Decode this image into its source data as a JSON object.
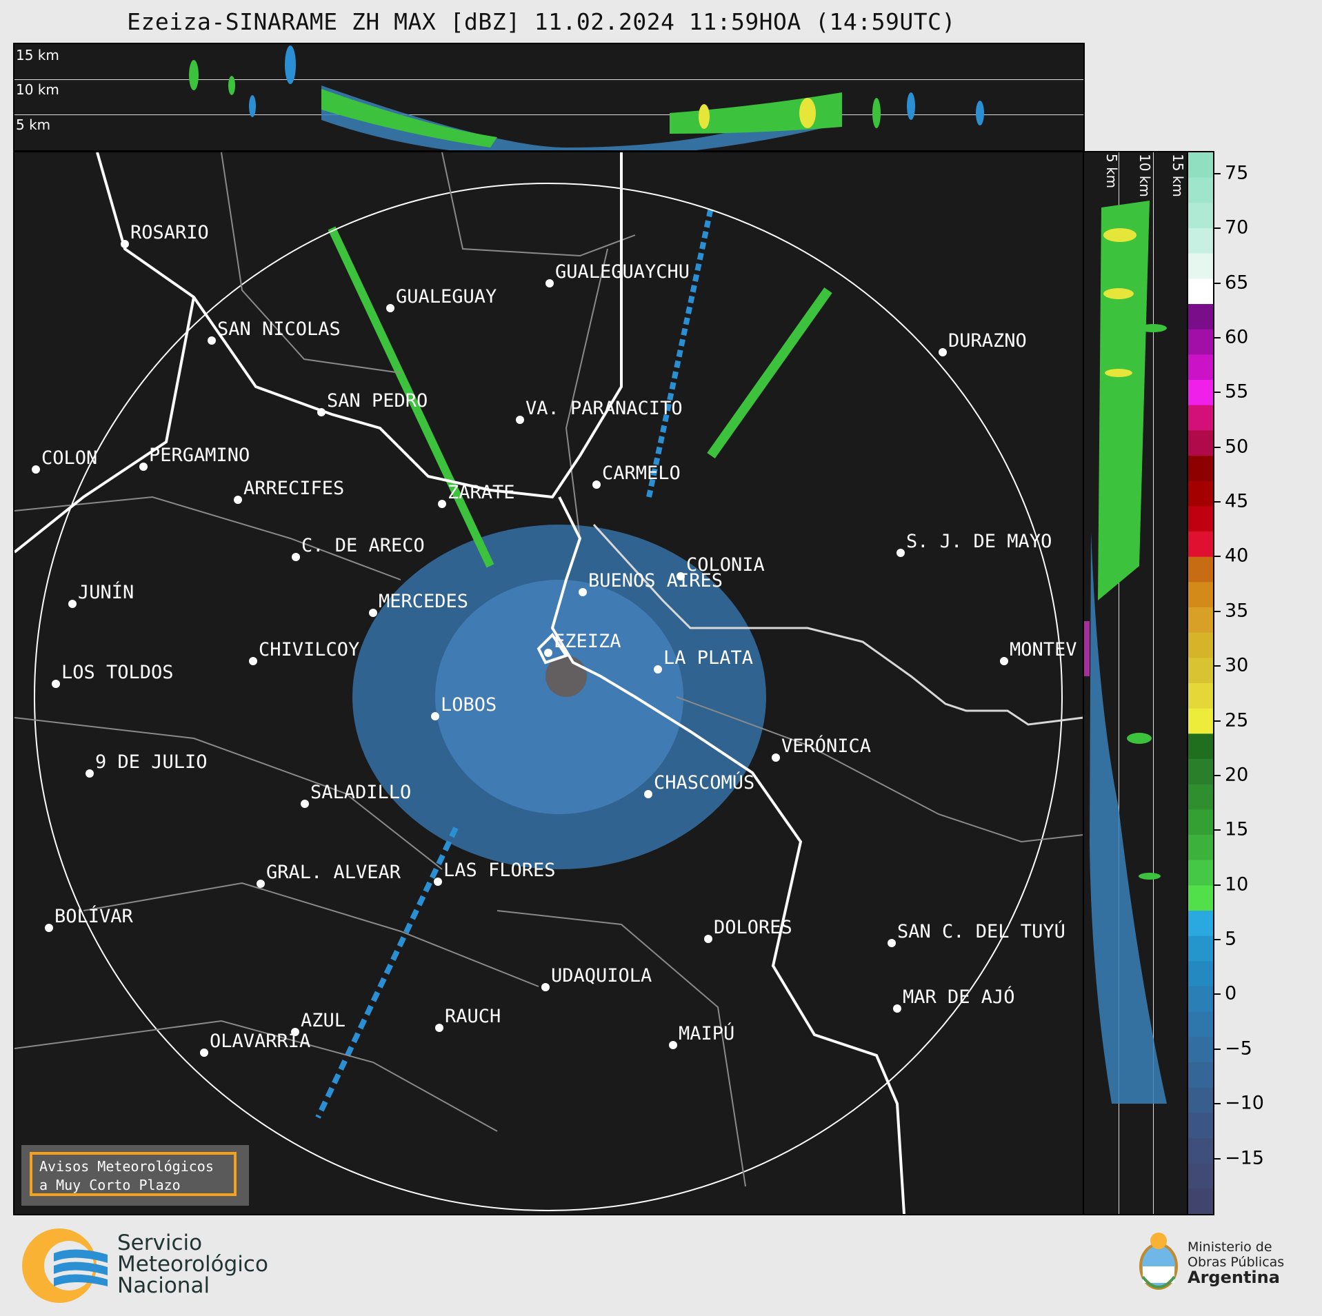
{
  "title": "Ezeiza-SINARAME ZH MAX [dBZ] 11.02.2024 11:59HOA (14:59UTC)",
  "altitude_labels": [
    "15 km",
    "10 km",
    "5 km"
  ],
  "colorbar": {
    "ticks": [
      "75",
      "70",
      "65",
      "60",
      "55",
      "50",
      "45",
      "40",
      "35",
      "30",
      "25",
      "20",
      "15",
      "10",
      "5",
      "0",
      "−5",
      "−10",
      "−15"
    ],
    "range": [
      -20,
      77
    ]
  },
  "cities": [
    {
      "name": "ROSARIO"
    },
    {
      "name": "GUALEGUAYCHU"
    },
    {
      "name": "GUALEGUAY"
    },
    {
      "name": "SAN NICOLAS"
    },
    {
      "name": "DURAZNO"
    },
    {
      "name": "SAN PEDRO"
    },
    {
      "name": "VA. PARANACITO"
    },
    {
      "name": "COLON"
    },
    {
      "name": "PERGAMINO"
    },
    {
      "name": "CARMELO"
    },
    {
      "name": "ARRECIFES"
    },
    {
      "name": "ZARATE"
    },
    {
      "name": "S. J. DE MAYO"
    },
    {
      "name": "C. DE ARECO"
    },
    {
      "name": "COLONIA"
    },
    {
      "name": "JUNÍN"
    },
    {
      "name": "BUENOS AIRES"
    },
    {
      "name": "MERCEDES"
    },
    {
      "name": "EZEIZA"
    },
    {
      "name": "MONTEV"
    },
    {
      "name": "CHIVILCOY"
    },
    {
      "name": "LA PLATA"
    },
    {
      "name": "LOS TOLDOS"
    },
    {
      "name": "LOBOS"
    },
    {
      "name": "VERÓNICA"
    },
    {
      "name": "9 DE JULIO"
    },
    {
      "name": "CHASCOMÚS"
    },
    {
      "name": "SALADILLO"
    },
    {
      "name": "GRAL. ALVEAR"
    },
    {
      "name": "LAS FLORES"
    },
    {
      "name": "BOLÍVAR"
    },
    {
      "name": "DOLORES"
    },
    {
      "name": "SAN C. DEL TUYÚ"
    },
    {
      "name": "UDAQUIOLA"
    },
    {
      "name": "MAR DE AJÓ"
    },
    {
      "name": "RAUCH"
    },
    {
      "name": "AZUL"
    },
    {
      "name": "MAIPÚ"
    },
    {
      "name": "OLAVARRÍA"
    }
  ],
  "avisos": {
    "line1": "Avisos Meteorológicos",
    "line2": "a Muy Corto Plazo"
  },
  "smn_logo": {
    "line1": "Servicio",
    "line2": "Meteorológico",
    "line3": "Nacional"
  },
  "ministry_logo": {
    "line1": "Ministerio de",
    "line2": "Obras Públicas",
    "line3": "Argentina"
  },
  "colors": {
    "background": "#1a1a1a",
    "coast": "#ffffff",
    "borders": "#8a8a8a",
    "smn_orange": "#f9b234",
    "smn_blue": "#2b8fd3"
  }
}
